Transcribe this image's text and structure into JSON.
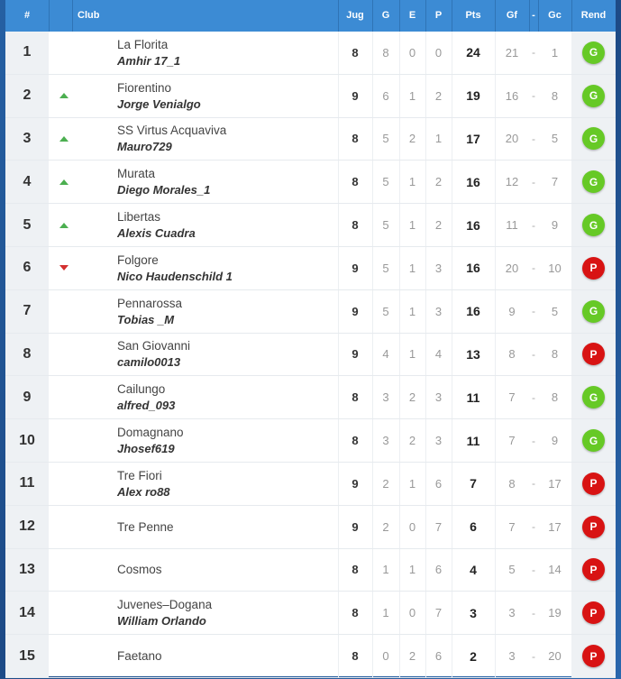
{
  "header": {
    "pos": "#",
    "club": "Club",
    "jug": "Jug",
    "g": "G",
    "e": "E",
    "p": "P",
    "pts": "Pts",
    "gf": "Gf",
    "dash": "-",
    "gc": "Gc",
    "rend": "Rend"
  },
  "colors": {
    "header_bg": "#3c8bd4",
    "up": "#4caf50",
    "down": "#d32f2f",
    "badge_g": "#66c926",
    "badge_p": "#d81313"
  },
  "rows": [
    {
      "pos": "1",
      "trend": "",
      "club": "La Florita",
      "manager": "Amhir 17_1",
      "jug": "8",
      "g": "8",
      "e": "0",
      "p": "0",
      "pts": "24",
      "gf": "21",
      "gc": "1",
      "rend": "G"
    },
    {
      "pos": "2",
      "trend": "up",
      "club": "Fiorentino",
      "manager": "Jorge Venialgo",
      "jug": "9",
      "g": "6",
      "e": "1",
      "p": "2",
      "pts": "19",
      "gf": "16",
      "gc": "8",
      "rend": "G"
    },
    {
      "pos": "3",
      "trend": "up",
      "club": "SS Virtus Acquaviva",
      "manager": "Mauro729",
      "jug": "8",
      "g": "5",
      "e": "2",
      "p": "1",
      "pts": "17",
      "gf": "20",
      "gc": "5",
      "rend": "G"
    },
    {
      "pos": "4",
      "trend": "up",
      "club": "Murata",
      "manager": "Diego Morales_1",
      "jug": "8",
      "g": "5",
      "e": "1",
      "p": "2",
      "pts": "16",
      "gf": "12",
      "gc": "7",
      "rend": "G"
    },
    {
      "pos": "5",
      "trend": "up",
      "club": "Libertas",
      "manager": "Alexis Cuadra",
      "jug": "8",
      "g": "5",
      "e": "1",
      "p": "2",
      "pts": "16",
      "gf": "11",
      "gc": "9",
      "rend": "G"
    },
    {
      "pos": "6",
      "trend": "down",
      "club": "Folgore",
      "manager": "Nico Haudenschild 1",
      "jug": "9",
      "g": "5",
      "e": "1",
      "p": "3",
      "pts": "16",
      "gf": "20",
      "gc": "10",
      "rend": "P"
    },
    {
      "pos": "7",
      "trend": "",
      "club": "Pennarossa",
      "manager": "Tobias _M",
      "jug": "9",
      "g": "5",
      "e": "1",
      "p": "3",
      "pts": "16",
      "gf": "9",
      "gc": "5",
      "rend": "G"
    },
    {
      "pos": "8",
      "trend": "",
      "club": "San Giovanni",
      "manager": "camilo0013",
      "jug": "9",
      "g": "4",
      "e": "1",
      "p": "4",
      "pts": "13",
      "gf": "8",
      "gc": "8",
      "rend": "P"
    },
    {
      "pos": "9",
      "trend": "",
      "club": "Cailungo",
      "manager": "alfred_093",
      "jug": "8",
      "g": "3",
      "e": "2",
      "p": "3",
      "pts": "11",
      "gf": "7",
      "gc": "8",
      "rend": "G"
    },
    {
      "pos": "10",
      "trend": "",
      "club": "Domagnano",
      "manager": "Jhosef619",
      "jug": "8",
      "g": "3",
      "e": "2",
      "p": "3",
      "pts": "11",
      "gf": "7",
      "gc": "9",
      "rend": "G"
    },
    {
      "pos": "11",
      "trend": "",
      "club": "Tre Fiori",
      "manager": "Alex ro88",
      "jug": "9",
      "g": "2",
      "e": "1",
      "p": "6",
      "pts": "7",
      "gf": "8",
      "gc": "17",
      "rend": "P"
    },
    {
      "pos": "12",
      "trend": "",
      "club": "Tre Penne",
      "manager": "",
      "jug": "9",
      "g": "2",
      "e": "0",
      "p": "7",
      "pts": "6",
      "gf": "7",
      "gc": "17",
      "rend": "P"
    },
    {
      "pos": "13",
      "trend": "",
      "club": "Cosmos",
      "manager": "",
      "jug": "8",
      "g": "1",
      "e": "1",
      "p": "6",
      "pts": "4",
      "gf": "5",
      "gc": "14",
      "rend": "P"
    },
    {
      "pos": "14",
      "trend": "",
      "club": "Juvenes–Dogana",
      "manager": "William Orlando",
      "jug": "8",
      "g": "1",
      "e": "0",
      "p": "7",
      "pts": "3",
      "gf": "3",
      "gc": "19",
      "rend": "P"
    },
    {
      "pos": "15",
      "trend": "",
      "club": "Faetano",
      "manager": "",
      "jug": "8",
      "g": "0",
      "e": "2",
      "p": "6",
      "pts": "2",
      "gf": "3",
      "gc": "20",
      "rend": "P"
    }
  ]
}
